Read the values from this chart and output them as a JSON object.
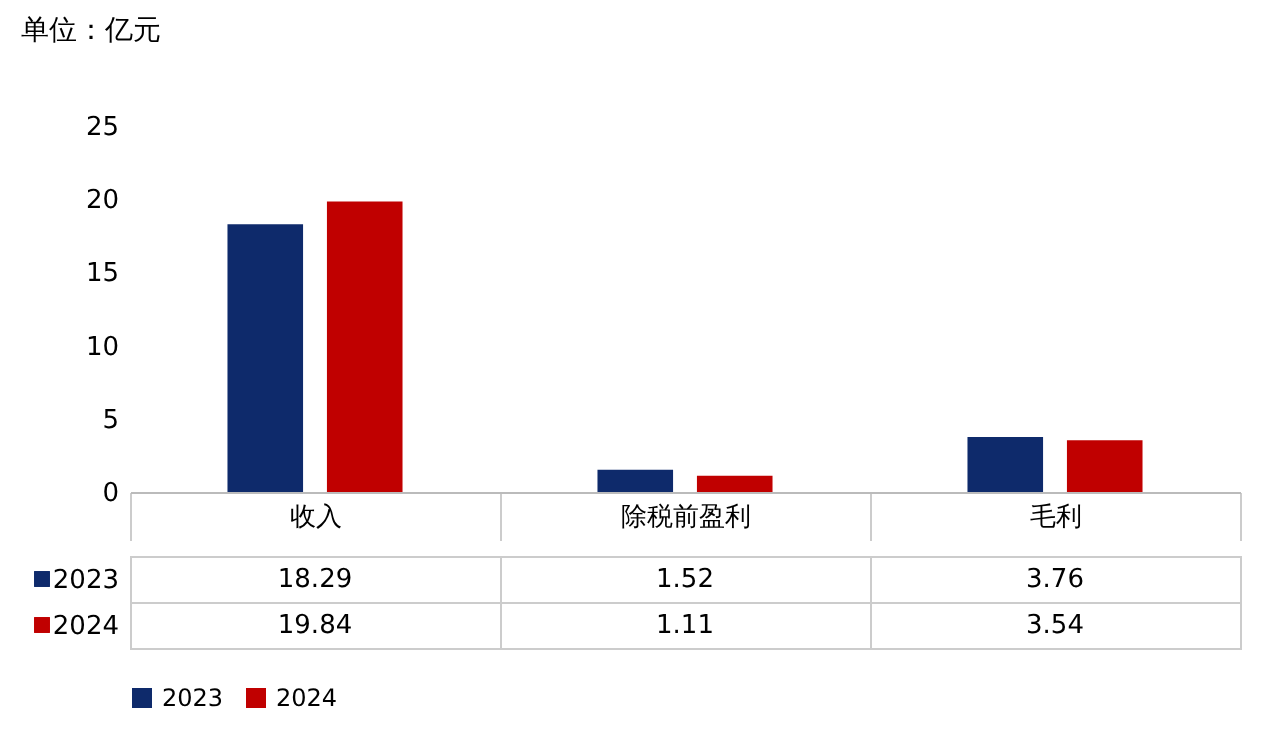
{
  "chart_data": {
    "type": "bar",
    "ylabel": "单位：亿元",
    "categories": [
      "收入",
      "除税前盈利",
      "毛利"
    ],
    "series": [
      {
        "name": "2023",
        "color": "#0e2a6b",
        "values": [
          18.29,
          1.52,
          3.76
        ]
      },
      {
        "name": "2024",
        "color": "#c00000",
        "values": [
          19.84,
          1.11,
          3.54
        ]
      }
    ],
    "ylim": [
      0,
      25
    ],
    "yticks": [
      0,
      5,
      10,
      15,
      20,
      25
    ],
    "grid": false,
    "legend": "bottom",
    "data_labels": true
  }
}
